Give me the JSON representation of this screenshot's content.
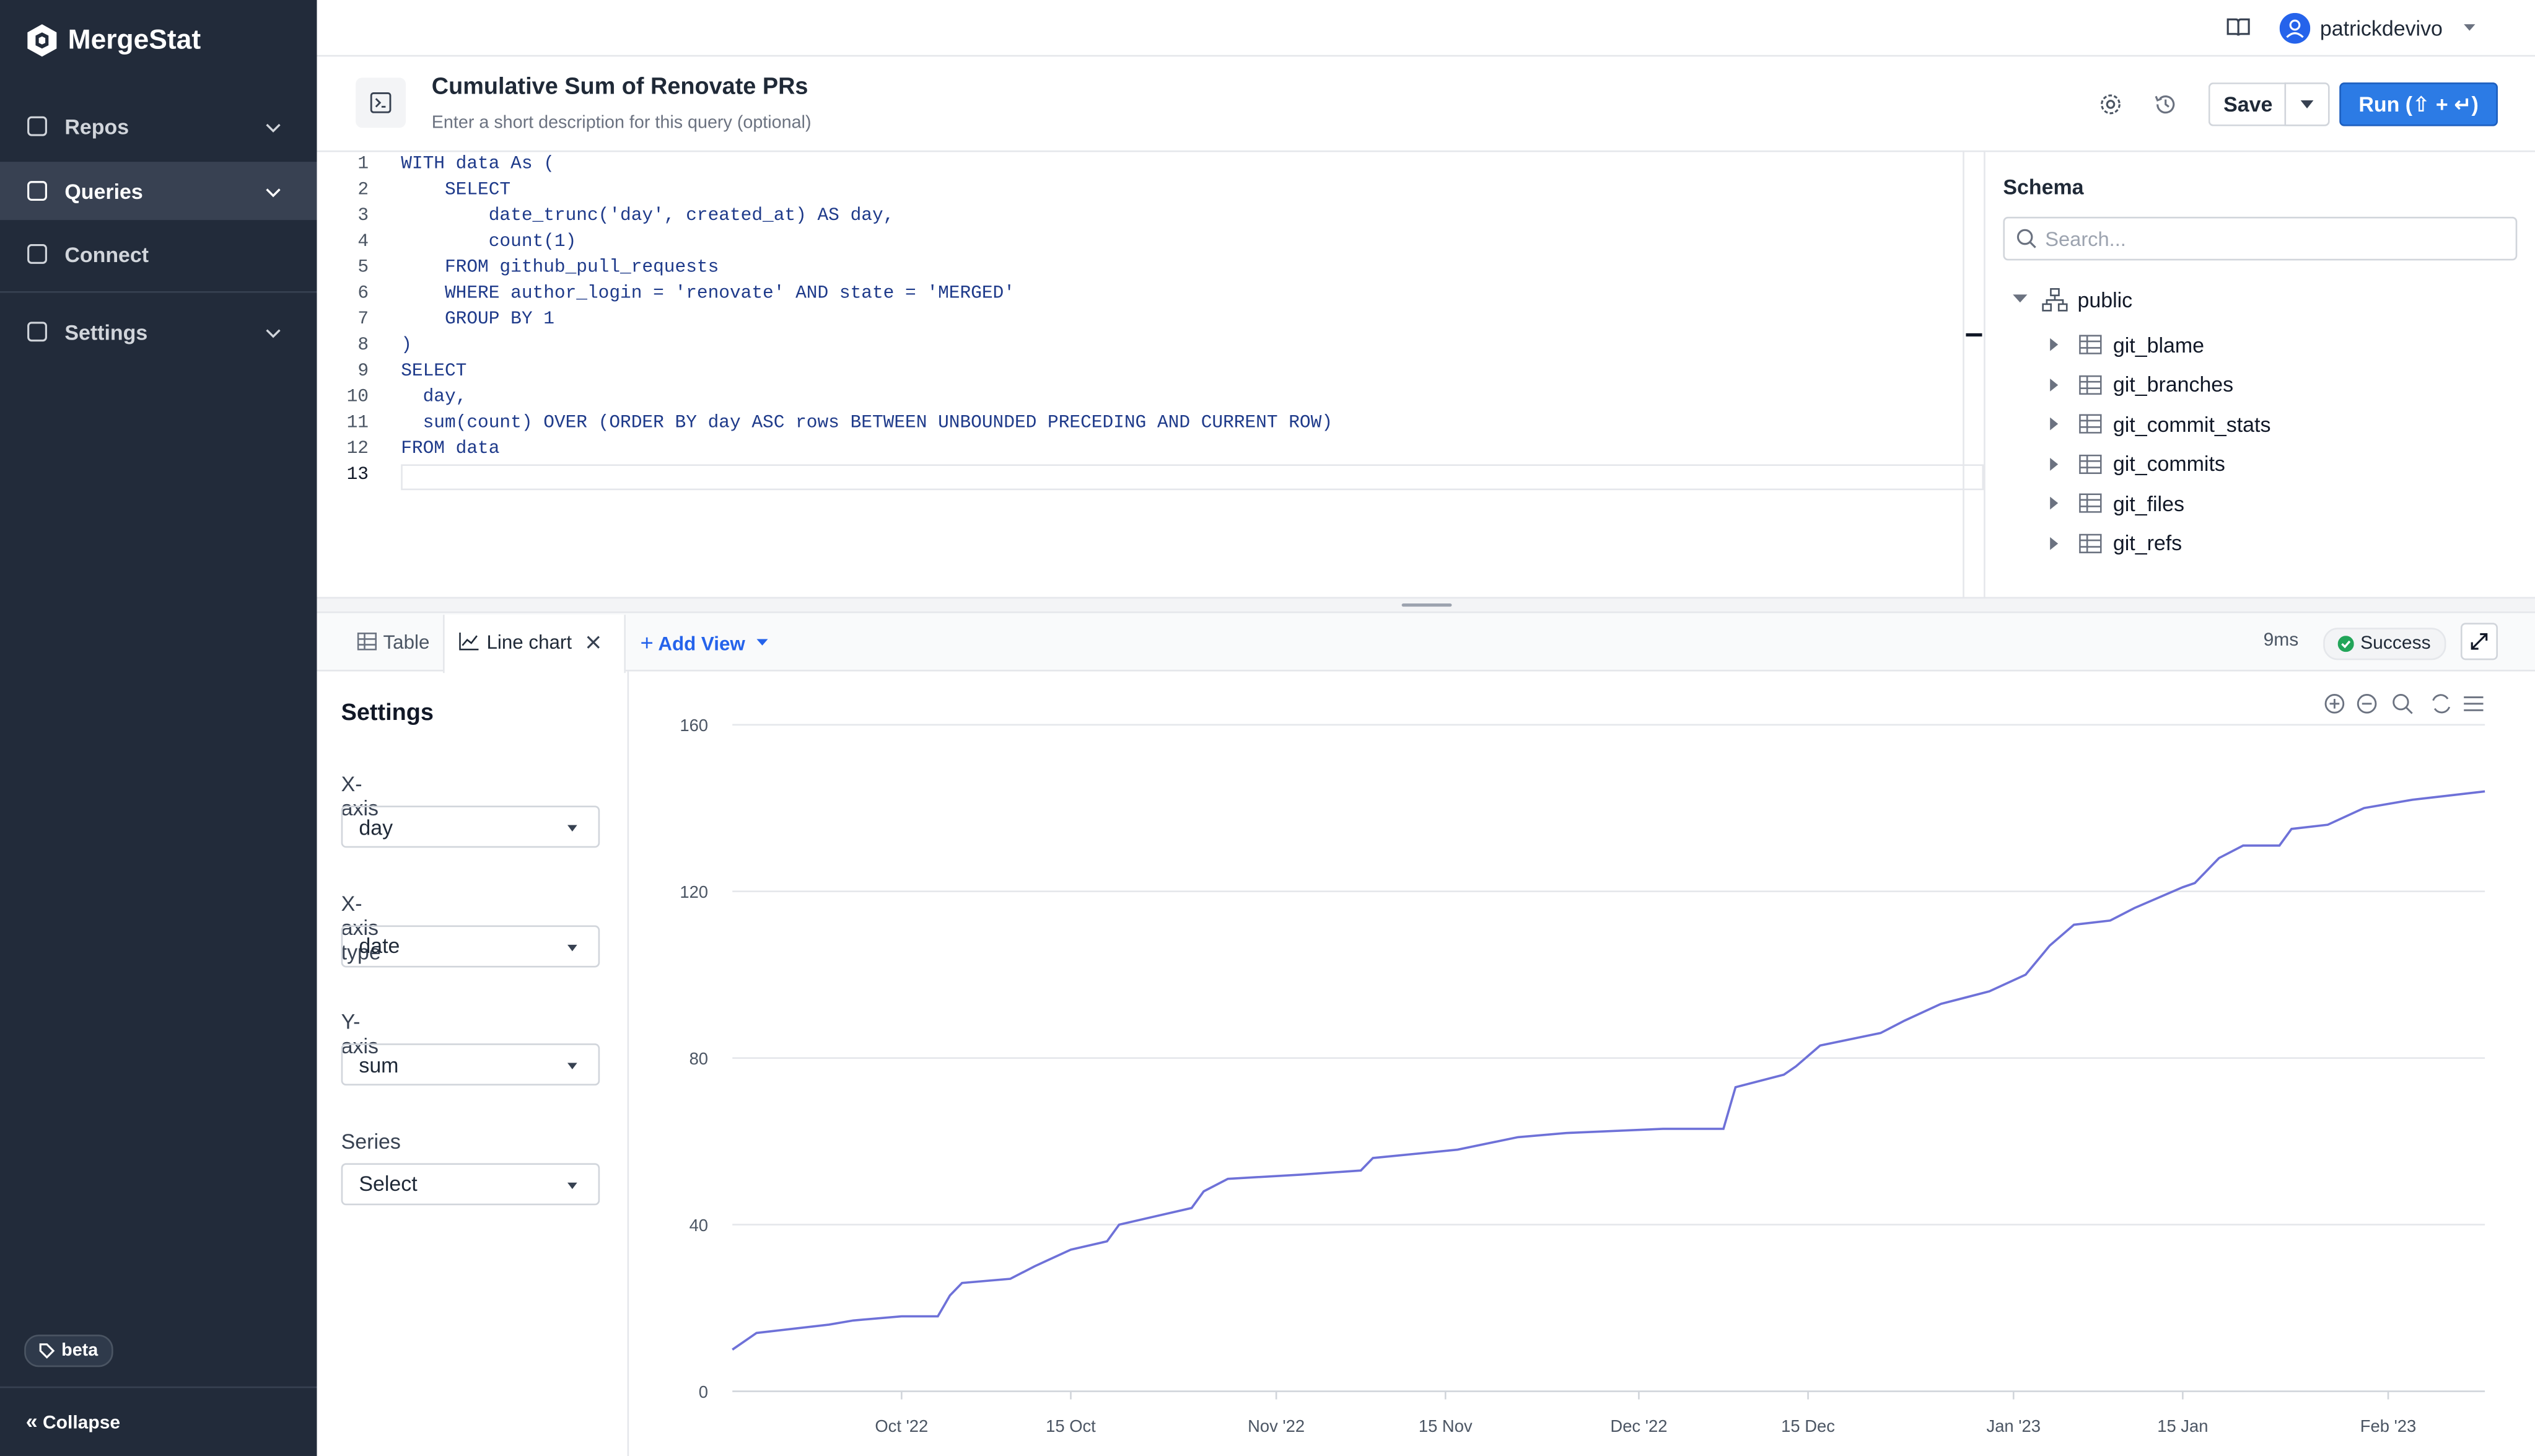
{
  "sidebar": {
    "brand": "MergeStat",
    "nav": [
      "Repos",
      "Queries",
      "Connect",
      "Settings"
    ],
    "badge": "beta",
    "collapse": "Collapse"
  },
  "topbar": {
    "user": "patrickdevivo"
  },
  "query": {
    "title": "Cumulative Sum of Renovate PRs",
    "description": "Enter a short description for this query (optional)",
    "save": "Save",
    "run": "Run (⇧ + ↵)"
  },
  "editor": {
    "line_numbers": [
      1,
      2,
      3,
      4,
      5,
      6,
      7,
      8,
      9,
      10,
      11,
      12,
      13
    ],
    "lines": [
      "WITH data As (",
      "    SELECT",
      "        date_trunc('day', created_at) AS day,",
      "        count(1)",
      "    FROM github_pull_requests",
      "    WHERE author_login = 'renovate' AND state = 'MERGED'",
      "    GROUP BY 1",
      ")",
      "SELECT",
      "  day,",
      "  sum(count) OVER (ORDER BY day ASC rows BETWEEN UNBOUNDED PRECEDING AND CURRENT ROW)",
      "FROM data"
    ]
  },
  "schema": {
    "title": "Schema",
    "search": "Search...",
    "schema_name": "public",
    "tables": [
      "git_blame",
      "git_branches",
      "git_commit_stats",
      "git_commits",
      "git_files",
      "git_refs"
    ]
  },
  "results": {
    "tabs": [
      "Table",
      "Line chart"
    ],
    "add_view": "Add View",
    "time": "9ms",
    "status": "Success"
  },
  "settings": {
    "title": "Settings",
    "fields": [
      {
        "label": "X-axis",
        "value": "day"
      },
      {
        "label": "X-axis type",
        "value": "date"
      },
      {
        "label": "Y-axis",
        "value": "sum"
      },
      {
        "label": "Series",
        "value": "Select"
      }
    ]
  },
  "chart_data": {
    "type": "line",
    "color": "#6e71d8",
    "grid": true,
    "x": [
      "2022-09-17",
      "2022-09-19",
      "2022-09-22",
      "2022-09-25",
      "2022-09-27",
      "2022-10-01",
      "2022-10-04",
      "2022-10-05",
      "2022-10-06",
      "2022-10-10",
      "2022-10-12",
      "2022-10-15",
      "2022-10-18",
      "2022-10-19",
      "2022-10-22",
      "2022-10-25",
      "2022-10-26",
      "2022-10-28",
      "2022-11-03",
      "2022-11-08",
      "2022-11-09",
      "2022-11-16",
      "2022-11-21",
      "2022-11-25",
      "2022-12-03",
      "2022-12-08",
      "2022-12-09",
      "2022-12-13",
      "2022-12-14",
      "2022-12-16",
      "2022-12-21",
      "2022-12-23",
      "2022-12-26",
      "2022-12-30",
      "2023-01-02",
      "2023-01-04",
      "2023-01-06",
      "2023-01-09",
      "2023-01-11",
      "2023-01-15",
      "2023-01-16",
      "2023-01-18",
      "2023-01-20",
      "2023-01-23",
      "2023-01-24",
      "2023-01-27",
      "2023-01-30",
      "2023-02-03",
      "2023-02-09"
    ],
    "values": [
      10,
      14,
      15,
      16,
      17,
      18,
      18,
      23,
      26,
      27,
      30,
      34,
      36,
      40,
      42,
      44,
      48,
      51,
      52,
      53,
      56,
      58,
      61,
      62,
      63,
      63,
      73,
      76,
      78,
      83,
      86,
      89,
      93,
      96,
      100,
      107,
      112,
      113,
      116,
      121,
      122,
      128,
      131,
      131,
      135,
      136,
      140,
      142,
      144
    ],
    "xlim": [
      "2022-09-17",
      "2023-02-09"
    ],
    "xticks": [
      {
        "value": "2022-10-01",
        "label": "Oct '22"
      },
      {
        "value": "2022-10-15",
        "label": "15 Oct"
      },
      {
        "value": "2022-11-01",
        "label": "Nov '22"
      },
      {
        "value": "2022-11-15",
        "label": "15 Nov"
      },
      {
        "value": "2022-12-01",
        "label": "Dec '22"
      },
      {
        "value": "2022-12-15",
        "label": "15 Dec"
      },
      {
        "value": "2023-01-01",
        "label": "Jan '23"
      },
      {
        "value": "2023-01-15",
        "label": "15 Jan"
      },
      {
        "value": "2023-02-01",
        "label": "Feb '23"
      }
    ],
    "ylim": [
      0,
      160
    ],
    "yticks": [
      0,
      40,
      80,
      120,
      160
    ]
  }
}
